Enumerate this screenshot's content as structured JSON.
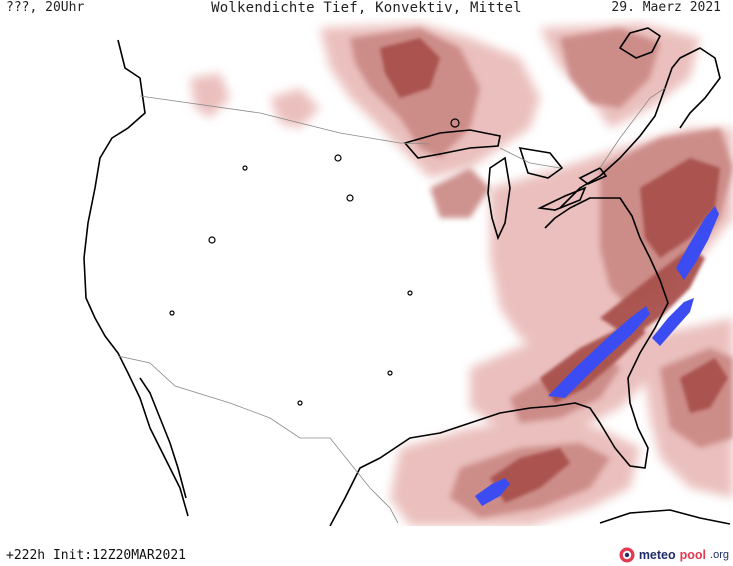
{
  "header": {
    "left": "???, 20Uhr",
    "title": "Wolkendichte  Tief, Konvektiv, Mittel",
    "date": "29. Maerz 2021"
  },
  "footer": {
    "run_info": "+222h Init:12Z20MAR2021",
    "brand": {
      "part1": "meteo",
      "part2": "pool",
      "part3": ".org"
    }
  },
  "map": {
    "region": "contiguous United States",
    "colors": {
      "background": "#ffffff",
      "coastline": "#000000",
      "borders": "#8a8a8a",
      "cloud_light": "#e7b5b2",
      "cloud_medium": "#c98783",
      "cloud_dark": "#a9514e",
      "cloud_dense": "#3b4df2"
    }
  }
}
